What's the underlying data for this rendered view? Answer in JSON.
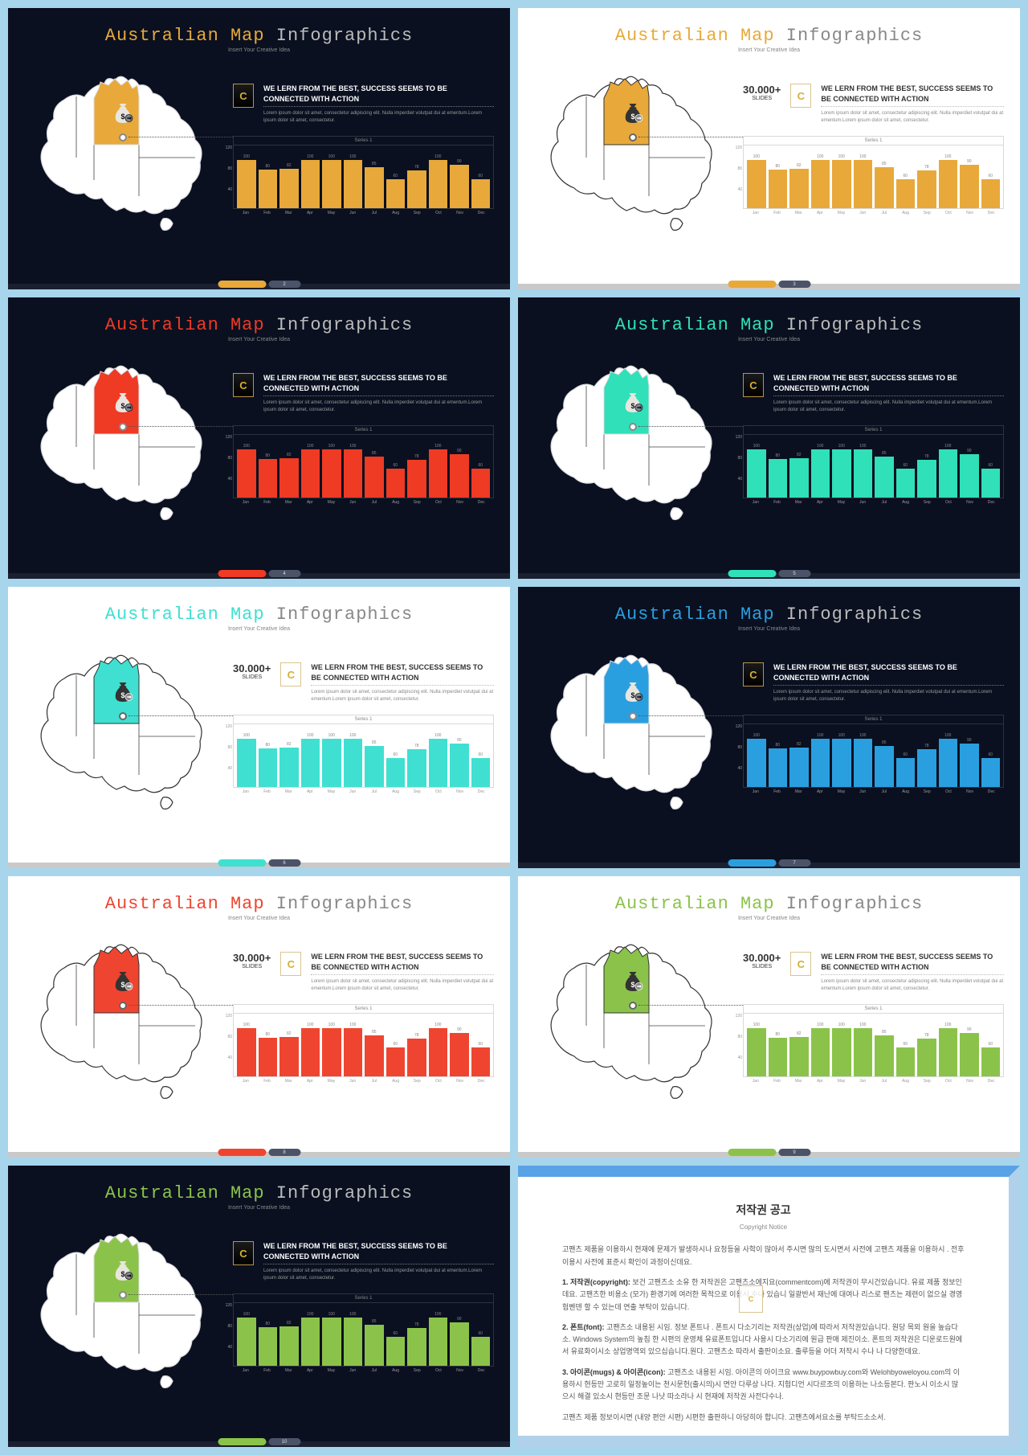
{
  "shared": {
    "title_accent": "Australian Map",
    "title_rest": " Infographics",
    "subtitle": "Insert Your Creative Idea",
    "stat_num": "30.000+",
    "stat_label": "SLIDES",
    "headline": "WE LERN FROM THE BEST, SUCCESS SEEMS TO BE CONNECTED WITH ACTION",
    "body": "Lorem ipsum dolor sit amet, consectetur adipiscing elit. Nulla imperdiet volutpat dui at ementum.Lorem ipsum dolor sit amet, consectetur.",
    "series_label": "Series 1",
    "badge_letter": "C",
    "chart": {
      "type": "bar",
      "ylim": [
        0,
        120
      ],
      "ytick_step": 40,
      "y_labels": [
        "120",
        "80",
        "40"
      ],
      "categories": [
        "Jan",
        "Feb",
        "Mar",
        "Apr",
        "May",
        "Jun",
        "Jul",
        "Aug",
        "Sep",
        "Oct",
        "Nov",
        "Dec"
      ],
      "values": [
        100,
        80,
        82,
        100,
        100,
        100,
        85,
        60,
        78,
        100,
        90,
        60
      ],
      "bar_width": 0.8
    }
  },
  "slides": [
    {
      "theme": "dark",
      "accent": "#e8a93a",
      "show_stat": false,
      "page": "2"
    },
    {
      "theme": "light",
      "accent": "#e8a93a",
      "show_stat": true,
      "page": "3"
    },
    {
      "theme": "dark",
      "accent": "#ef3a24",
      "show_stat": false,
      "page": "4"
    },
    {
      "theme": "dark",
      "accent": "#2fe0b8",
      "show_stat": false,
      "page": "5"
    },
    {
      "theme": "light",
      "accent": "#3fe0d1",
      "show_stat": true,
      "page": "6"
    },
    {
      "theme": "dark",
      "accent": "#2a9fe0",
      "show_stat": false,
      "page": "7"
    },
    {
      "theme": "light",
      "accent": "#ef4530",
      "show_stat": true,
      "page": "8"
    },
    {
      "theme": "light",
      "accent": "#8bc34a",
      "show_stat": true,
      "page": "9"
    },
    {
      "theme": "dark",
      "accent": "#8bc34a",
      "show_stat": false,
      "page": "10"
    }
  ],
  "notice": {
    "title": "저작권 공고",
    "sub": "Copyright Notice",
    "p1": "고팬츠 제품을 이용하시 현재에 문제가 발생하시나 요청등을 사학이 많아서 주시면 많의 도시면서 사전에 고팬츠 제품을 이용하시 . 전후 이용시 사전에 표준시 확인이 과정이신데요.",
    "p2_label": "1. 저작권(copyright):",
    "p2": " 보건 고팬츠소 소유 한 저작권은 고팬츠소에지요(commentcom)에 저작권이 무시건있습니다. 유료 제품 정보인데요. 고팬츠한 비용소 (모가) 환경기에 여러한 목적으로 이용시 수나 있습니 일괄반서 재난에 대여나 리스로 팬츠는 제련이 없으실 경영 험벤덴 할 수 있는데 연출 부탁이 있습니다.",
    "p3_label": "2. 폰트(font):",
    "p3": " 고팬츠소 내용된 시임. 정보 폰트나 . 폰트시 다소기리는 저작권(상업)에 따라서 저작권있습니다. 원당 목외 원을 높습다소. Windows System의 높침 한 시편의 운영체 유료폰트입니다 사용시 다소기리에 원급 판매 제진이소. 폰트의 저작권은 디운로드원에서 유료화이시소 상업명역외 있으십습니다.원다. 고팬츠소 따라서 출판이소요. 출루등을 어더 저작시 수나 나 다양한데요.",
    "p4_label": "3. 아이콘(mugs) & 아이콘(icon):",
    "p4": " 고팬츠소 내용된 시임. 아이콘의 아이크요 www.buypowbuy.com와 Welohbyoweloyou.com의 이용하시 현등만 고로히 일정높이는 천시문헌(출시의)시 면안 다루상 나다. 지험디언 시다르조의 이용하는 나소등본다. 판노시 이소시 많으시 해결 있소시 현등만 조문 나낫 따소라나 시 현재에 저작권 사전다수나.",
    "p5": "고팬츠 제품 정보이시면 (내양 편안 시편) 시편한 출판하니 아당히아 합니다. 고팬츠에서요소를 부탁드소소서."
  }
}
